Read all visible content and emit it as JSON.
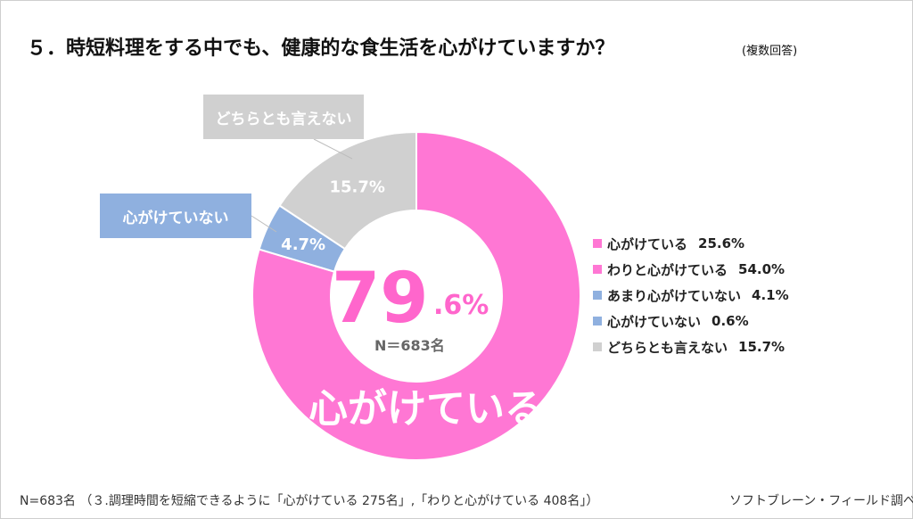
{
  "title": "５．時短料理をする中でも、健康的な食生活を心がけていますか？",
  "title_note": "(複数回答)",
  "center": {
    "big": "79",
    "small": ".6%",
    "n_label": "N＝683名",
    "label": "心がけている"
  },
  "callouts": {
    "neither": "どちらとも言えない",
    "not": "心がけていない"
  },
  "chart_data": {
    "type": "pie",
    "variant": "donut",
    "categories": [
      "心がけている",
      "わりと心がけている",
      "あまり心がけていない",
      "心がけていない",
      "どちらとも言えない"
    ],
    "values": [
      25.6,
      54.0,
      4.1,
      0.6,
      15.7
    ],
    "legend_texts": [
      "25.6%",
      "54.0%",
      "4.1%",
      "0.6%",
      "15.7%"
    ],
    "colors": [
      "#ff77d4",
      "#ff77d4",
      "#8fb0df",
      "#8fb0df",
      "#d0d0d0"
    ],
    "segments": [
      {
        "label": "心がけている",
        "value": 79.6,
        "color": "#ff77d4",
        "display": ""
      },
      {
        "label": "心がけていない",
        "value": 4.7,
        "color": "#8fb0df",
        "display": "4.7%"
      },
      {
        "label": "どちらとも言えない",
        "value": 15.7,
        "color": "#d0d0d0",
        "display": "15.7%"
      }
    ],
    "legend_position": "right"
  },
  "footer": {
    "note": "N=683名 （３.調理時間を短縮できるように「心がけている 275名」,「わりと心がけている 408名」）",
    "source": "ソフトブレーン・フィールド調べ"
  }
}
